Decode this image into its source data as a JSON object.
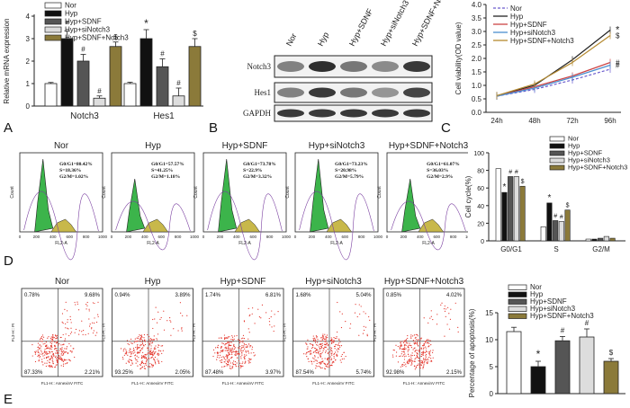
{
  "panel_letters": [
    "A",
    "B",
    "C",
    "D",
    "E"
  ],
  "colors": {
    "nor": "#ffffff",
    "hyp": "#111111",
    "sdnf": "#555555",
    "sinotch": "#dddddd",
    "sdnf_notch": "#8b7a3a",
    "hist_green": "#3cb44b",
    "hist_yellow": "#c8b84a",
    "hist_purple": "#7a3fa0",
    "dot": "#e4342a"
  },
  "groups": [
    "Nor",
    "Hyp",
    "Hyp+SDNF",
    "Hyp+siNotch3",
    "Hyp+SDNF+Notch3"
  ],
  "panel_a": {
    "chart_data": {
      "type": "bar",
      "ylabel": "Relative mRNA expression",
      "ylim": [
        0,
        4
      ],
      "yticks": [
        "0",
        "1",
        "2",
        "3",
        "4"
      ],
      "categories": [
        "Notch3",
        "Hes1"
      ],
      "series": [
        {
          "name": "Nor",
          "values": [
            1.0,
            1.0
          ],
          "err": [
            0.05,
            0.06
          ]
        },
        {
          "name": "Hyp",
          "values": [
            3.0,
            3.0
          ],
          "err": [
            0.35,
            0.4
          ]
        },
        {
          "name": "Hyp+SDNF",
          "values": [
            2.0,
            1.75
          ],
          "err": [
            0.3,
            0.35
          ]
        },
        {
          "name": "Hyp+siNotch3",
          "values": [
            0.35,
            0.45
          ],
          "err": [
            0.1,
            0.35
          ]
        },
        {
          "name": "Hyp+SDNF+Notch3",
          "values": [
            2.65,
            2.65
          ],
          "err": [
            0.2,
            0.35
          ]
        }
      ],
      "marks": [
        [
          "",
          "*",
          "#",
          "#",
          "$"
        ],
        [
          "",
          "*",
          "#",
          "#",
          "$"
        ]
      ]
    }
  },
  "panel_b": {
    "headers": [
      "Nor",
      "Hyp",
      "Hyp+SDNF",
      "Hyp+siNotch3",
      "Hyp+SDNF+Notch3"
    ],
    "rows": [
      "Notch3",
      "Hes1",
      "GAPDH"
    ]
  },
  "panel_c": {
    "chart_data": {
      "type": "line",
      "ylabel": "Cell viability(OD value)",
      "ylim": [
        0,
        4
      ],
      "yticks": [
        "0.0",
        "0.5",
        "1.0",
        "1.5",
        "2.0",
        "2.5",
        "3.0",
        "3.5",
        "4.0"
      ],
      "categories": [
        "24h",
        "48h",
        "72h",
        "96h"
      ],
      "series": [
        {
          "name": "Nor",
          "values": [
            0.6,
            0.85,
            1.2,
            1.6
          ]
        },
        {
          "name": "Hyp",
          "values": [
            0.62,
            1.0,
            1.95,
            3.05
          ]
        },
        {
          "name": "Hyp+SDNF",
          "values": [
            0.6,
            0.95,
            1.35,
            1.85
          ]
        },
        {
          "name": "Hyp+siNotch3",
          "values": [
            0.6,
            0.9,
            1.3,
            1.75
          ]
        },
        {
          "name": "Hyp+SDNF+Notch3",
          "values": [
            0.62,
            1.05,
            1.85,
            2.85
          ]
        }
      ],
      "marks": [
        "*",
        "$",
        "#",
        "#"
      ],
      "series_colors": [
        "#6a5acd",
        "#222222",
        "#cc4444",
        "#4a8fd0",
        "#b58a30"
      ],
      "series_dash": [
        "3,2",
        "",
        "",
        "",
        ""
      ]
    }
  },
  "panel_d": {
    "histograms": [
      {
        "title": "Nor",
        "g0g1": "G0/G1=80.42%",
        "s": "S=18.36%",
        "g2m": "G2/M=1.02%"
      },
      {
        "title": "Hyp",
        "g0g1": "G0/G1=57.57%",
        "s": "S=41.25%",
        "g2m": "G2/M=1.18%"
      },
      {
        "title": "Hyp+SDNF",
        "g0g1": "G0/G1=73.78%",
        "s": "S=22.9%",
        "g2m": "G2/M=3.32%"
      },
      {
        "title": "Hyp+siNotch3",
        "g0g1": "G0/G1=73.23%",
        "s": "S=20.98%",
        "g2m": "G2/M=5.79%"
      },
      {
        "title": "Hyp+SDNF+Notch3",
        "g0g1": "G0/G1=61.07%",
        "s": "S=36.03%",
        "g2m": "G2/M=2.9%"
      }
    ],
    "xlabel": "FL2-A",
    "ylabel": "Count",
    "xticks": [
      "0",
      "200",
      "400",
      "600",
      "800",
      "1000"
    ],
    "chart_data": {
      "type": "bar",
      "ylabel": "Cell cycle(%)",
      "ylim": [
        0,
        100
      ],
      "yticks": [
        "0",
        "20",
        "40",
        "60",
        "80",
        "100"
      ],
      "categories": [
        "G0/G1",
        "S",
        "G2/M"
      ],
      "series": [
        {
          "name": "Nor",
          "values": [
            82,
            16,
            2
          ]
        },
        {
          "name": "Hyp",
          "values": [
            55,
            43,
            2
          ]
        },
        {
          "name": "Hyp+SDNF",
          "values": [
            73,
            23,
            3
          ]
        },
        {
          "name": "Hyp+siNotch3",
          "values": [
            73,
            22,
            5
          ]
        },
        {
          "name": "Hyp+SDNF+Notch3",
          "values": [
            62,
            35,
            3
          ]
        }
      ],
      "marks": [
        [
          "",
          "*",
          "#",
          "#",
          "$"
        ],
        [
          "",
          "*",
          "#",
          "#",
          "$"
        ],
        [
          "",
          "",
          "",
          "",
          ""
        ]
      ]
    }
  },
  "panel_e": {
    "plots": [
      {
        "title": "Nor",
        "ul": "0.78%",
        "ur": "9.68%",
        "ll": "87.33%",
        "lr": "2.21%"
      },
      {
        "title": "Hyp",
        "ul": "0.94%",
        "ur": "3.89%",
        "ll": "93.25%",
        "lr": "2.05%"
      },
      {
        "title": "Hyp+SDNF",
        "ul": "1.74%",
        "ur": "6.81%",
        "ll": "87.48%",
        "lr": "3.97%"
      },
      {
        "title": "Hyp+siNotch3",
        "ul": "1.68%",
        "ur": "5.04%",
        "ll": "87.54%",
        "lr": "5.74%"
      },
      {
        "title": "Hyp+SDNF+Notch3",
        "ul": "0.85%",
        "ur": "4.02%",
        "ll": "92.98%",
        "lr": "2.15%"
      }
    ],
    "xlabel": "FL1-H:: AnnexinV FITC",
    "ylabel": "FL3-H:: PI",
    "chart_data": {
      "type": "bar",
      "ylabel": "Percentage of apoptosis(%)",
      "ylim": [
        0,
        15
      ],
      "yticks": [
        "0",
        "5",
        "10",
        "15"
      ],
      "categories": [
        "Nor",
        "Hyp",
        "Hyp+SDNF",
        "Hyp+siNotch3",
        "Hyp+SDNF+Notch3"
      ],
      "values": [
        11.5,
        5.0,
        9.8,
        10.5,
        6.0
      ],
      "err": [
        0.8,
        1.0,
        0.8,
        1.5,
        0.5
      ],
      "marks": [
        "",
        "*",
        "#",
        "#",
        "$"
      ]
    }
  }
}
